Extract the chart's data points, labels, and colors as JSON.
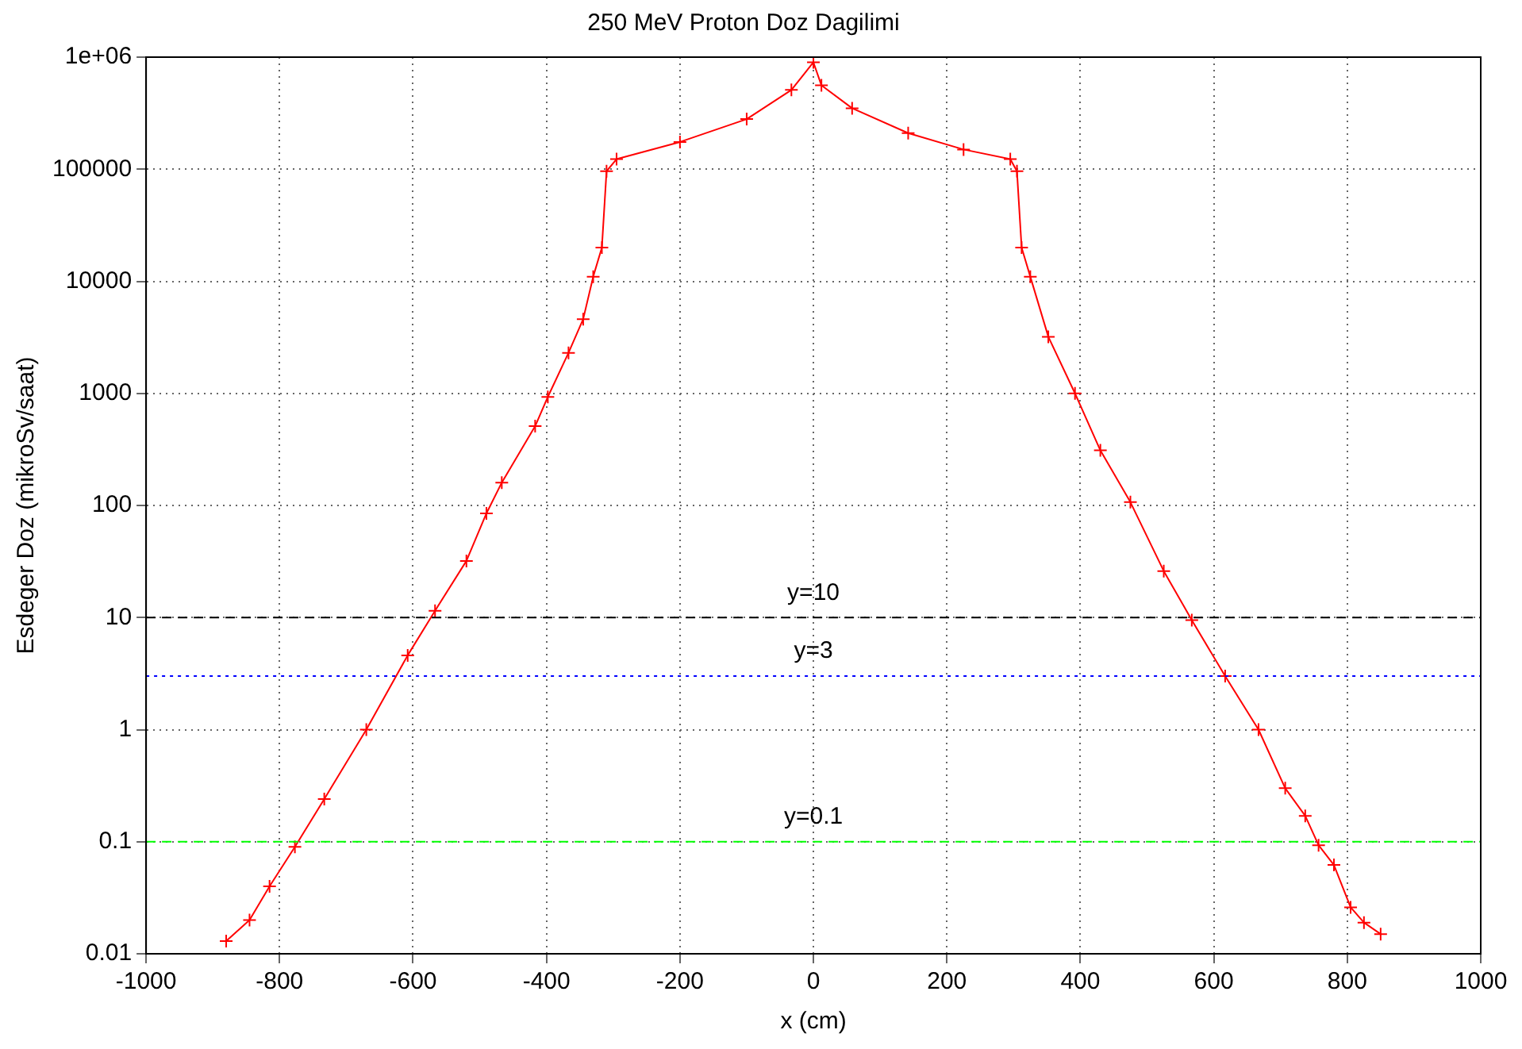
{
  "chart_data": {
    "type": "line",
    "title": "250 MeV Proton Doz Dagilimi",
    "xlabel": "x (cm)",
    "ylabel": "Esdeger Doz (mikroSv/saat)",
    "log": "y",
    "grid": true,
    "legend": false,
    "marker": "cross",
    "line_style": "solid",
    "xlim": [
      -1000,
      1000
    ],
    "xticks": [
      -1000,
      -800,
      -600,
      -400,
      -200,
      0,
      200,
      400,
      600,
      800,
      1000
    ],
    "ylim": [
      0.01,
      1000000
    ],
    "yticks": [
      0.01,
      0.1,
      1,
      10,
      100,
      1000,
      10000,
      100000,
      {
        "value": 1000000,
        "label": "1e+06"
      }
    ],
    "series": [
      {
        "color": "#ff0000",
        "x": [
          -880,
          -845,
          -815,
          -777,
          -733,
          -670,
          -608,
          -567,
          -520,
          -490,
          -467,
          -417,
          -398,
          -367,
          -345,
          -330,
          -317,
          -310,
          -295,
          -200,
          -100,
          -33,
          0,
          12,
          58,
          142,
          225,
          295,
          305,
          312,
          325,
          352,
          392,
          430,
          475,
          525,
          567,
          617,
          667,
          707,
          737,
          757,
          780,
          805,
          825,
          850
        ],
        "values": [
          0.013,
          0.02,
          0.04,
          0.09,
          0.24,
          1,
          4.6,
          11.5,
          32,
          85,
          160,
          510,
          930,
          2300,
          4600,
          11000,
          20000,
          96000,
          123000,
          175000,
          280000,
          510000,
          900000,
          560000,
          350000,
          210000,
          150000,
          123000,
          96000,
          20000,
          11000,
          3200,
          1000,
          310,
          107,
          26,
          9.5,
          3,
          1,
          0.3,
          0.17,
          0.093,
          0.062,
          0.026,
          0.019,
          0.015
        ]
      }
    ],
    "ref_lines": [
      {
        "axis": "y",
        "value": 10,
        "label": "y=10",
        "color": "#000000",
        "line_style": "dashed"
      },
      {
        "axis": "y",
        "value": 3,
        "label": "y=3",
        "color": "#0000ff",
        "line_style": "dotted"
      },
      {
        "axis": "y",
        "value": 0.1,
        "label": "y=0.1",
        "color": "#00ff00",
        "line_style": "dashed"
      }
    ]
  }
}
